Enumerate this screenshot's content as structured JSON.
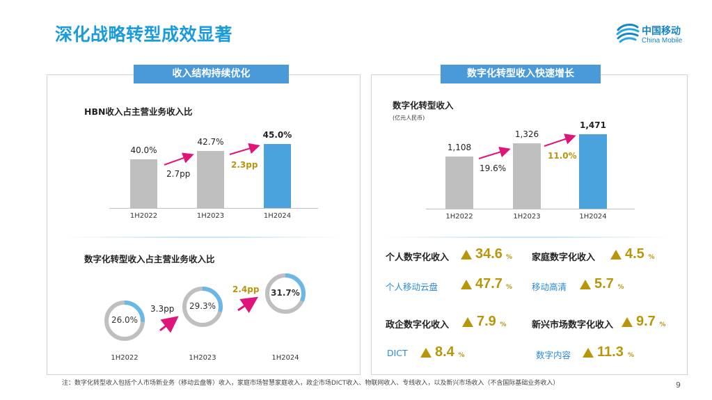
{
  "title": "深化战略转型成效显著",
  "logo": {
    "cn": "中国移动",
    "en": "China Mobile"
  },
  "left": {
    "header": "收入结构持续优化",
    "chart1": {
      "title": "HBN收入占主营业务收入比",
      "deltas": [
        "2.7pp",
        "2.3pp"
      ]
    },
    "chart2": {
      "title": "数字化转型收入占主营业务收入比",
      "deltas": [
        "3.3pp",
        "2.4pp"
      ]
    }
  },
  "right": {
    "header": "数字化转型收入快速增长",
    "chart3": {
      "title": "数字化转型收入",
      "subtitle": "(亿元人民币)",
      "deltas": [
        "19.6%",
        "11.0%"
      ]
    },
    "metrics": [
      {
        "label": "个人数字化收入",
        "value": "34.6",
        "unit": "%",
        "style": "bold"
      },
      {
        "label": "家庭数字化收入",
        "value": "4.5",
        "unit": "%",
        "style": "bold"
      },
      {
        "label": "个人移动云盘",
        "value": "47.7",
        "unit": "%",
        "style": "blue"
      },
      {
        "label": "移动高清",
        "value": "5.7",
        "unit": "%",
        "style": "blue"
      },
      {
        "label": "政企数字化收入",
        "value": "7.9",
        "unit": "%",
        "style": "bold"
      },
      {
        "label": "新兴市场数字化收入",
        "value": "9.7",
        "unit": "%",
        "style": "bold"
      },
      {
        "label": "DICT",
        "value": "8.4",
        "unit": "%",
        "style": "blue"
      },
      {
        "label": "数字内容",
        "value": "11.3",
        "unit": "%",
        "style": "blue"
      }
    ]
  },
  "footnote": "注：数字化转型收入包括个人市场新业务（移动云盘等）收入，家庭市场智慧家庭收入，政企市场DICT收入、物联网收入、专线收入，以及新兴市场收入（不含国际基础业务收入）",
  "page_number": "9",
  "chart_data": [
    {
      "type": "bar",
      "title": "HBN收入占主营业务收入比",
      "categories": [
        "1H2022",
        "1H2023",
        "1H2024"
      ],
      "values": [
        40.0,
        42.7,
        45.0
      ],
      "value_labels": [
        "40.0%",
        "42.7%",
        "45.0%"
      ],
      "colors": [
        "#bfbfbf",
        "#bfbfbf",
        "#4aa3dc"
      ]
    },
    {
      "type": "pie",
      "title": "数字化转型收入占主营业务收入比",
      "categories": [
        "1H2022",
        "1H2023",
        "1H2024"
      ],
      "values": [
        26.0,
        29.3,
        31.7
      ],
      "value_labels": [
        "26.0%",
        "29.3%",
        "31.7%"
      ]
    },
    {
      "type": "bar",
      "title": "数字化转型收入",
      "ylabel": "(亿元人民币)",
      "categories": [
        "1H2022",
        "1H2023",
        "1H2024"
      ],
      "values": [
        1108,
        1326,
        1471
      ],
      "value_labels": [
        "1,108",
        "1,326",
        "1,471"
      ],
      "colors": [
        "#bfbfbf",
        "#bfbfbf",
        "#4aa3dc"
      ]
    }
  ]
}
